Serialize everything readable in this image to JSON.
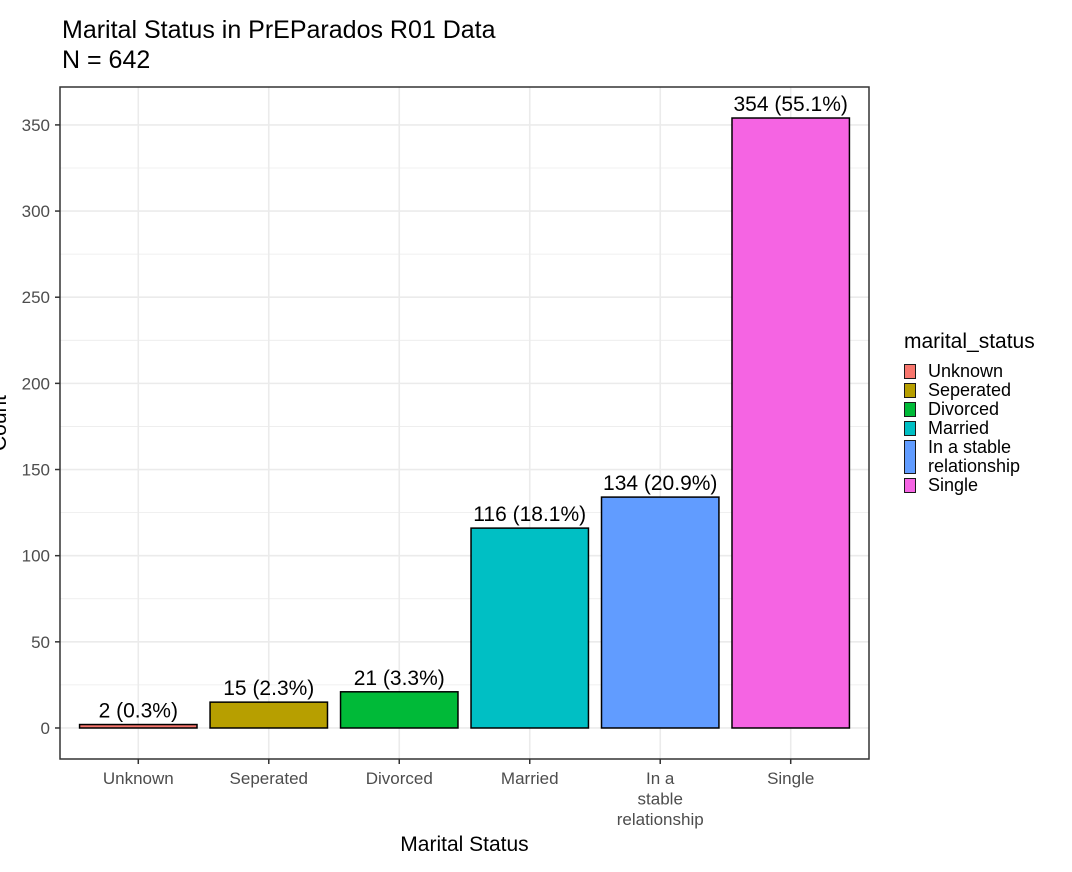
{
  "chart_data": {
    "type": "bar",
    "title": "Marital Status in PrEParados R01 Data",
    "subtitle": "N = 642",
    "xlabel": "Marital Status",
    "ylabel": "Count",
    "ylim": [
      -18,
      372
    ],
    "yticks": [
      0,
      50,
      100,
      150,
      200,
      250,
      300,
      350
    ],
    "grid": true,
    "categories": [
      "Unknown",
      "Seperated",
      "Divorced",
      "Married",
      "In a stable relationship",
      "Single"
    ],
    "category_tick_labels": [
      [
        "Unknown"
      ],
      [
        "Seperated"
      ],
      [
        "Divorced"
      ],
      [
        "Married"
      ],
      [
        "In a",
        "stable",
        "relationship"
      ],
      [
        "Single"
      ]
    ],
    "values": [
      2,
      15,
      21,
      116,
      134,
      354
    ],
    "data_labels": [
      "2 (0.3%)",
      "15 (2.3%)",
      "21 (3.3%)",
      "116 (18.1%)",
      "134 (20.9%)",
      "354 (55.1%)"
    ],
    "colors": [
      "#F8766D",
      "#B79F00",
      "#00BA38",
      "#00BFC4",
      "#619CFF",
      "#F564E3"
    ],
    "legend": {
      "title": "marital_status",
      "placement": "right",
      "entries": [
        {
          "label": "Unknown",
          "color": "#F8766D"
        },
        {
          "label": "Seperated",
          "color": "#B79F00"
        },
        {
          "label": "Divorced",
          "color": "#00BA38"
        },
        {
          "label": "Married",
          "color": "#00BFC4"
        },
        {
          "label": "In a stable relationship",
          "color": "#619CFF"
        },
        {
          "label": "Single",
          "color": "#F564E3"
        }
      ]
    }
  }
}
